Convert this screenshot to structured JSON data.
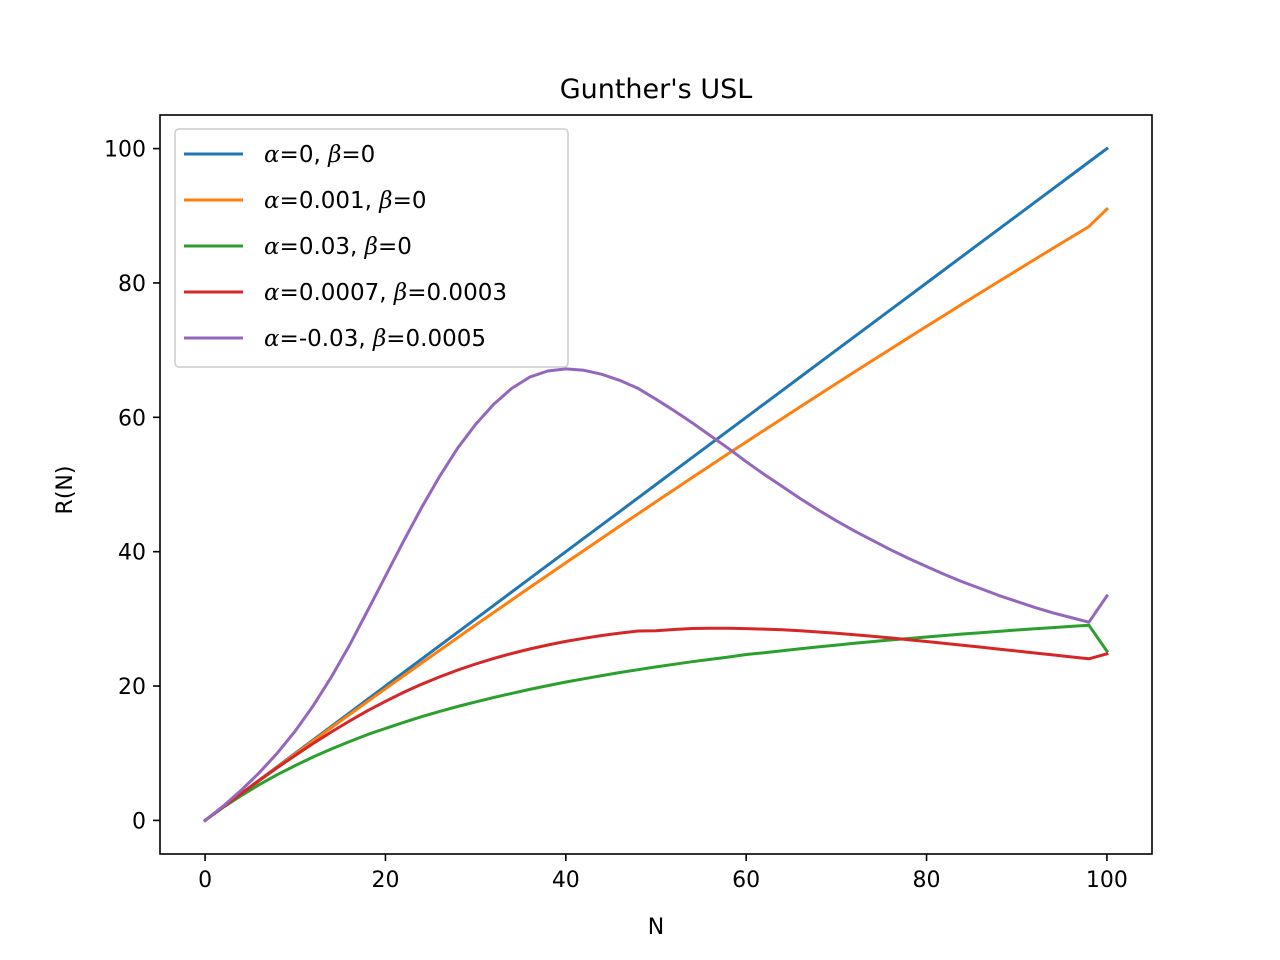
{
  "chart_data": {
    "type": "line",
    "title": "Gunther's USL",
    "xlabel": "N",
    "ylabel": "R(N)",
    "xlim": [
      -5,
      105
    ],
    "ylim": [
      -5,
      105
    ],
    "xticks": [
      0,
      20,
      40,
      60,
      80,
      100
    ],
    "yticks": [
      0,
      20,
      40,
      60,
      80,
      100
    ],
    "xtick_labels": [
      "0",
      "20",
      "40",
      "60",
      "80",
      "100"
    ],
    "ytick_labels": [
      "0",
      "20",
      "40",
      "60",
      "80",
      "100"
    ],
    "grid": false,
    "legend_position": "upper-left",
    "x": [
      0,
      2,
      4,
      6,
      8,
      10,
      12,
      14,
      16,
      18,
      20,
      22,
      24,
      26,
      28,
      30,
      32,
      34,
      36,
      38,
      40,
      42,
      44,
      46,
      48,
      50,
      52,
      54,
      56,
      58,
      60,
      62,
      64,
      66,
      68,
      70,
      72,
      74,
      76,
      78,
      80,
      82,
      84,
      86,
      88,
      90,
      92,
      94,
      96,
      98,
      100
    ],
    "series": [
      {
        "name": "α=0, β=0",
        "legend_label": {
          "a_sym": "α",
          "a_val": "=0, ",
          "b_sym": "β",
          "b_val": "=0"
        },
        "color": "#1f77b4",
        "values": [
          0,
          2,
          4,
          6,
          8,
          10,
          12,
          14,
          16,
          18,
          20,
          22,
          24,
          26,
          28,
          30,
          32,
          34,
          36,
          38,
          40,
          42,
          44,
          46,
          48,
          50,
          52,
          54,
          56,
          58,
          60,
          62,
          64,
          66,
          68,
          70,
          72,
          74,
          76,
          78,
          80,
          82,
          84,
          86,
          88,
          90,
          92,
          94,
          96,
          98,
          100
        ]
      },
      {
        "name": "α=0.001, β=0",
        "legend_label": {
          "a_sym": "α",
          "a_val": "=0.001, ",
          "b_sym": "β",
          "b_val": "=0"
        },
        "color": "#ff7f0e",
        "values": [
          0,
          2.0,
          3.99,
          5.97,
          7.94,
          9.9,
          11.86,
          13.81,
          15.75,
          17.68,
          19.6,
          21.51,
          23.41,
          25.31,
          27.2,
          29.08,
          30.94,
          32.81,
          34.67,
          36.52,
          38.35,
          40.18,
          42.01,
          43.83,
          45.63,
          47.44,
          49.23,
          51.02,
          52.8,
          54.57,
          56.33,
          58.08,
          59.83,
          61.57,
          63.3,
          65.03,
          66.75,
          68.46,
          70.16,
          71.85,
          73.54,
          75.22,
          76.89,
          78.56,
          80.22,
          81.86,
          83.51,
          85.14,
          86.77,
          88.39,
          91.0
        ]
      },
      {
        "name": "α=0.03, β=0",
        "legend_label": {
          "a_sym": "α",
          "a_val": "=0.03, ",
          "b_sym": "β",
          "b_val": "=0"
        },
        "color": "#2ca02c",
        "values": [
          0,
          1.94,
          3.7,
          5.32,
          6.8,
          8.17,
          9.45,
          10.63,
          11.73,
          12.77,
          13.7,
          14.59,
          15.43,
          16.22,
          16.95,
          17.64,
          18.29,
          18.91,
          19.5,
          20.06,
          20.6,
          21.08,
          21.56,
          22.01,
          22.44,
          22.85,
          23.24,
          23.62,
          23.97,
          24.31,
          24.7,
          24.97,
          25.26,
          25.55,
          25.83,
          26.1,
          26.36,
          26.61,
          26.85,
          27.08,
          27.3,
          27.52,
          27.74,
          27.94,
          28.14,
          28.34,
          28.52,
          28.7,
          28.88,
          29.05,
          25.2
        ]
      },
      {
        "name": "α=0.0007, β=0.0003",
        "legend_label": {
          "a_sym": "α",
          "a_val": "=0.0007, ",
          "b_sym": "β",
          "b_val": "=0.0003"
        },
        "color": "#d62728",
        "values": [
          0,
          2.0,
          3.98,
          5.93,
          7.84,
          9.68,
          11.46,
          13.16,
          14.78,
          16.31,
          17.73,
          19.05,
          20.26,
          21.36,
          22.37,
          23.28,
          24.11,
          24.85,
          25.51,
          26.11,
          26.64,
          27.11,
          27.52,
          27.88,
          28.19,
          28.23,
          28.41,
          28.57,
          28.6,
          28.6,
          28.55,
          28.47,
          28.37,
          28.22,
          28.05,
          27.86,
          27.64,
          27.41,
          27.16,
          26.9,
          26.63,
          26.35,
          26.07,
          25.79,
          25.5,
          25.21,
          24.92,
          24.63,
          24.34,
          24.06,
          24.8
        ]
      },
      {
        "name": "α=-0.03, β=0.0005",
        "legend_label": {
          "a_sym": "α",
          "a_val": "=-0.03, ",
          "b_sym": "β",
          "b_val": "=0.0005"
        },
        "color": "#9467bd",
        "values": [
          0,
          2.12,
          4.49,
          7.09,
          10.01,
          13.33,
          17.09,
          21.33,
          26.05,
          31.17,
          36.36,
          41.55,
          46.53,
          51.2,
          55.4,
          58.95,
          61.95,
          64.31,
          65.99,
          66.9,
          67.2,
          67.0,
          66.4,
          65.5,
          64.3,
          62.7,
          61.0,
          59.2,
          57.3,
          55.4,
          53.4,
          51.5,
          49.7,
          47.9,
          46.2,
          44.6,
          43.1,
          41.7,
          40.3,
          39.0,
          37.8,
          36.6,
          35.5,
          34.5,
          33.5,
          32.6,
          31.7,
          30.9,
          30.2,
          29.5,
          33.4
        ]
      }
    ]
  }
}
